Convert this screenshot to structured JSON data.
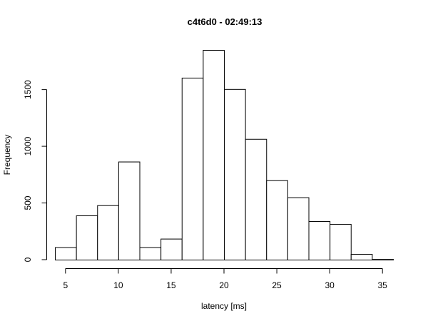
{
  "chart_data": {
    "type": "bar",
    "title": "c4t6d0 - 02:49:13",
    "xlabel": "latency [ms]",
    "ylabel": "Frequency",
    "bins": [
      {
        "x0": 4,
        "x1": 6,
        "count": 110
      },
      {
        "x0": 6,
        "x1": 8,
        "count": 390
      },
      {
        "x0": 8,
        "x1": 10,
        "count": 480
      },
      {
        "x0": 10,
        "x1": 12,
        "count": 865
      },
      {
        "x0": 12,
        "x1": 14,
        "count": 110
      },
      {
        "x0": 14,
        "x1": 16,
        "count": 185
      },
      {
        "x0": 16,
        "x1": 18,
        "count": 1605
      },
      {
        "x0": 18,
        "x1": 20,
        "count": 1850
      },
      {
        "x0": 20,
        "x1": 22,
        "count": 1505
      },
      {
        "x0": 22,
        "x1": 24,
        "count": 1065
      },
      {
        "x0": 24,
        "x1": 26,
        "count": 700
      },
      {
        "x0": 26,
        "x1": 28,
        "count": 550
      },
      {
        "x0": 28,
        "x1": 30,
        "count": 340
      },
      {
        "x0": 30,
        "x1": 32,
        "count": 315
      },
      {
        "x0": 32,
        "x1": 34,
        "count": 50
      },
      {
        "x0": 34,
        "x1": 36,
        "count": 5
      }
    ],
    "xticks": [
      "5",
      "10",
      "15",
      "20",
      "25",
      "30",
      "35"
    ],
    "yticks": [
      "0",
      "500",
      "1000",
      "1500"
    ],
    "xlim": [
      4,
      36
    ],
    "ylim": [
      0,
      1850
    ],
    "grid": false,
    "legend": "none"
  }
}
